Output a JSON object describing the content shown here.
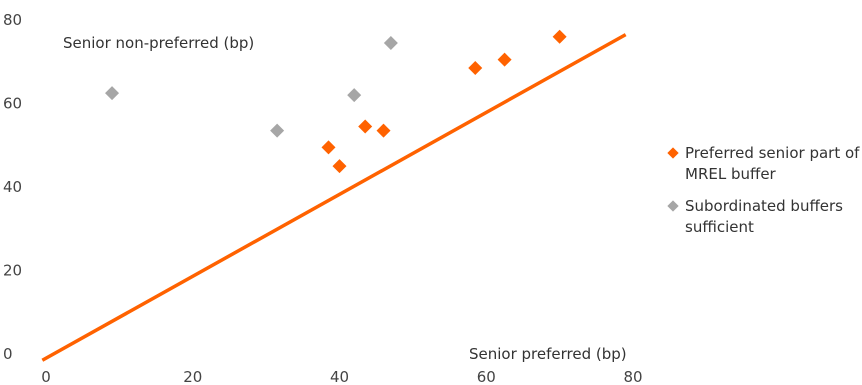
{
  "chart_data": {
    "type": "scatter",
    "xlabel": "Senior preferred (bp)",
    "ylabel": "Senior non-preferred (bp)",
    "xlim": [
      0,
      80
    ],
    "ylim": [
      0,
      80
    ],
    "x_ticks": [
      "0",
      "20",
      "40",
      "60",
      "80"
    ],
    "y_ticks": [
      "0",
      "20",
      "40",
      "60",
      "80"
    ],
    "grid": false,
    "legend_position": "right",
    "series": [
      {
        "name": "Preferred senior part of MREL buffer",
        "color": "#ff6200",
        "marker": "diamond",
        "points": [
          [
            38.5,
            49.5
          ],
          [
            40,
            45
          ],
          [
            43.5,
            54.5
          ],
          [
            46,
            53.5
          ],
          [
            58.5,
            68.5
          ],
          [
            62.5,
            70.5
          ],
          [
            70,
            76
          ]
        ]
      },
      {
        "name": "Subordinated buffers sufficient",
        "color": "#a6a6a6",
        "marker": "diamond",
        "points": [
          [
            9,
            62.5
          ],
          [
            31.5,
            53.5
          ],
          [
            42,
            62
          ],
          [
            47,
            74.5
          ]
        ]
      }
    ],
    "reference_line": {
      "color": "#ff6200",
      "from": [
        -0.5,
        -1.5
      ],
      "to": [
        79,
        76.5
      ]
    }
  }
}
